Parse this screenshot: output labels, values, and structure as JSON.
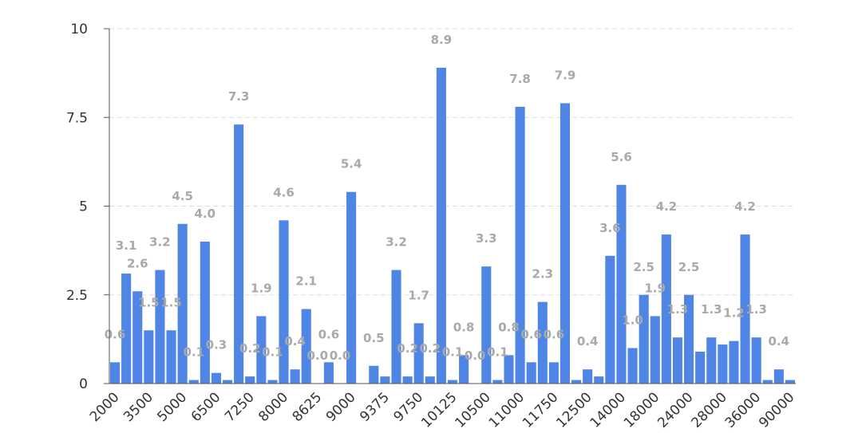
{
  "chart_data": {
    "type": "bar",
    "title": "",
    "xlabel": "",
    "ylabel": "",
    "ylim": [
      0,
      10
    ],
    "grid": true,
    "bar_color": "#4f86e6",
    "label_color": "#a9a9a9",
    "grid_color": "#dddddd",
    "yticks": [
      "0",
      "2.5",
      "5",
      "7.5",
      "10"
    ],
    "ytick_values": [
      0,
      2.5,
      5,
      7.5,
      10
    ],
    "xtick_labels": [
      "2000",
      "3500",
      "5000",
      "6500",
      "7250",
      "8000",
      "8625",
      "9000",
      "9375",
      "9750",
      "10125",
      "10500",
      "11000",
      "11750",
      "12500",
      "14000",
      "18000",
      "24000",
      "28000",
      "36000",
      "90000"
    ],
    "xtick_index": [
      0,
      3,
      6,
      9,
      12,
      15,
      18,
      21,
      24,
      27,
      30,
      33,
      36,
      39,
      42,
      45,
      48,
      51,
      54,
      57,
      60
    ],
    "values": [
      0.6,
      3.1,
      2.6,
      1.5,
      3.2,
      1.5,
      4.5,
      0.1,
      4.0,
      0.3,
      0.1,
      7.3,
      0.2,
      1.9,
      0.1,
      4.6,
      0.4,
      2.1,
      0.0,
      0.6,
      0.0,
      5.4,
      0.0,
      0.5,
      0.2,
      3.2,
      0.2,
      1.7,
      0.2,
      8.9,
      0.1,
      0.8,
      0.0,
      3.3,
      0.1,
      0.8,
      7.8,
      0.6,
      2.3,
      0.6,
      7.9,
      0.1,
      0.4,
      0.2,
      3.6,
      5.6,
      1.0,
      2.5,
      1.9,
      4.2,
      1.3,
      2.5,
      0.9,
      1.3,
      1.1,
      1.2,
      4.2,
      1.3,
      0.1,
      0.4,
      0.1
    ],
    "labels": [
      "0.6",
      "3.1",
      "2.6",
      "1.5",
      "3.2",
      "1.5",
      "4.5",
      "0.1",
      "4.0",
      "0.3",
      "",
      "7.3",
      "0.2",
      "1.9",
      "0.1",
      "4.6",
      "0.4",
      "2.1",
      "0.0",
      "0.6",
      "0.0",
      "5.4",
      "",
      "0.5",
      "",
      "3.2",
      "0.2",
      "1.7",
      "0.2",
      "8.9",
      "0.1",
      "0.8",
      "0.0",
      "3.3",
      "0.1",
      "0.8",
      "7.8",
      "0.6",
      "2.3",
      "0.6",
      "7.9",
      "",
      "0.4",
      "",
      "3.6",
      "5.6",
      "1.0",
      "2.5",
      "1.9",
      "4.2",
      "1.3",
      "2.5",
      "",
      "1.3",
      "",
      "1.2",
      "4.2",
      "1.3",
      "",
      "0.4",
      ""
    ]
  }
}
